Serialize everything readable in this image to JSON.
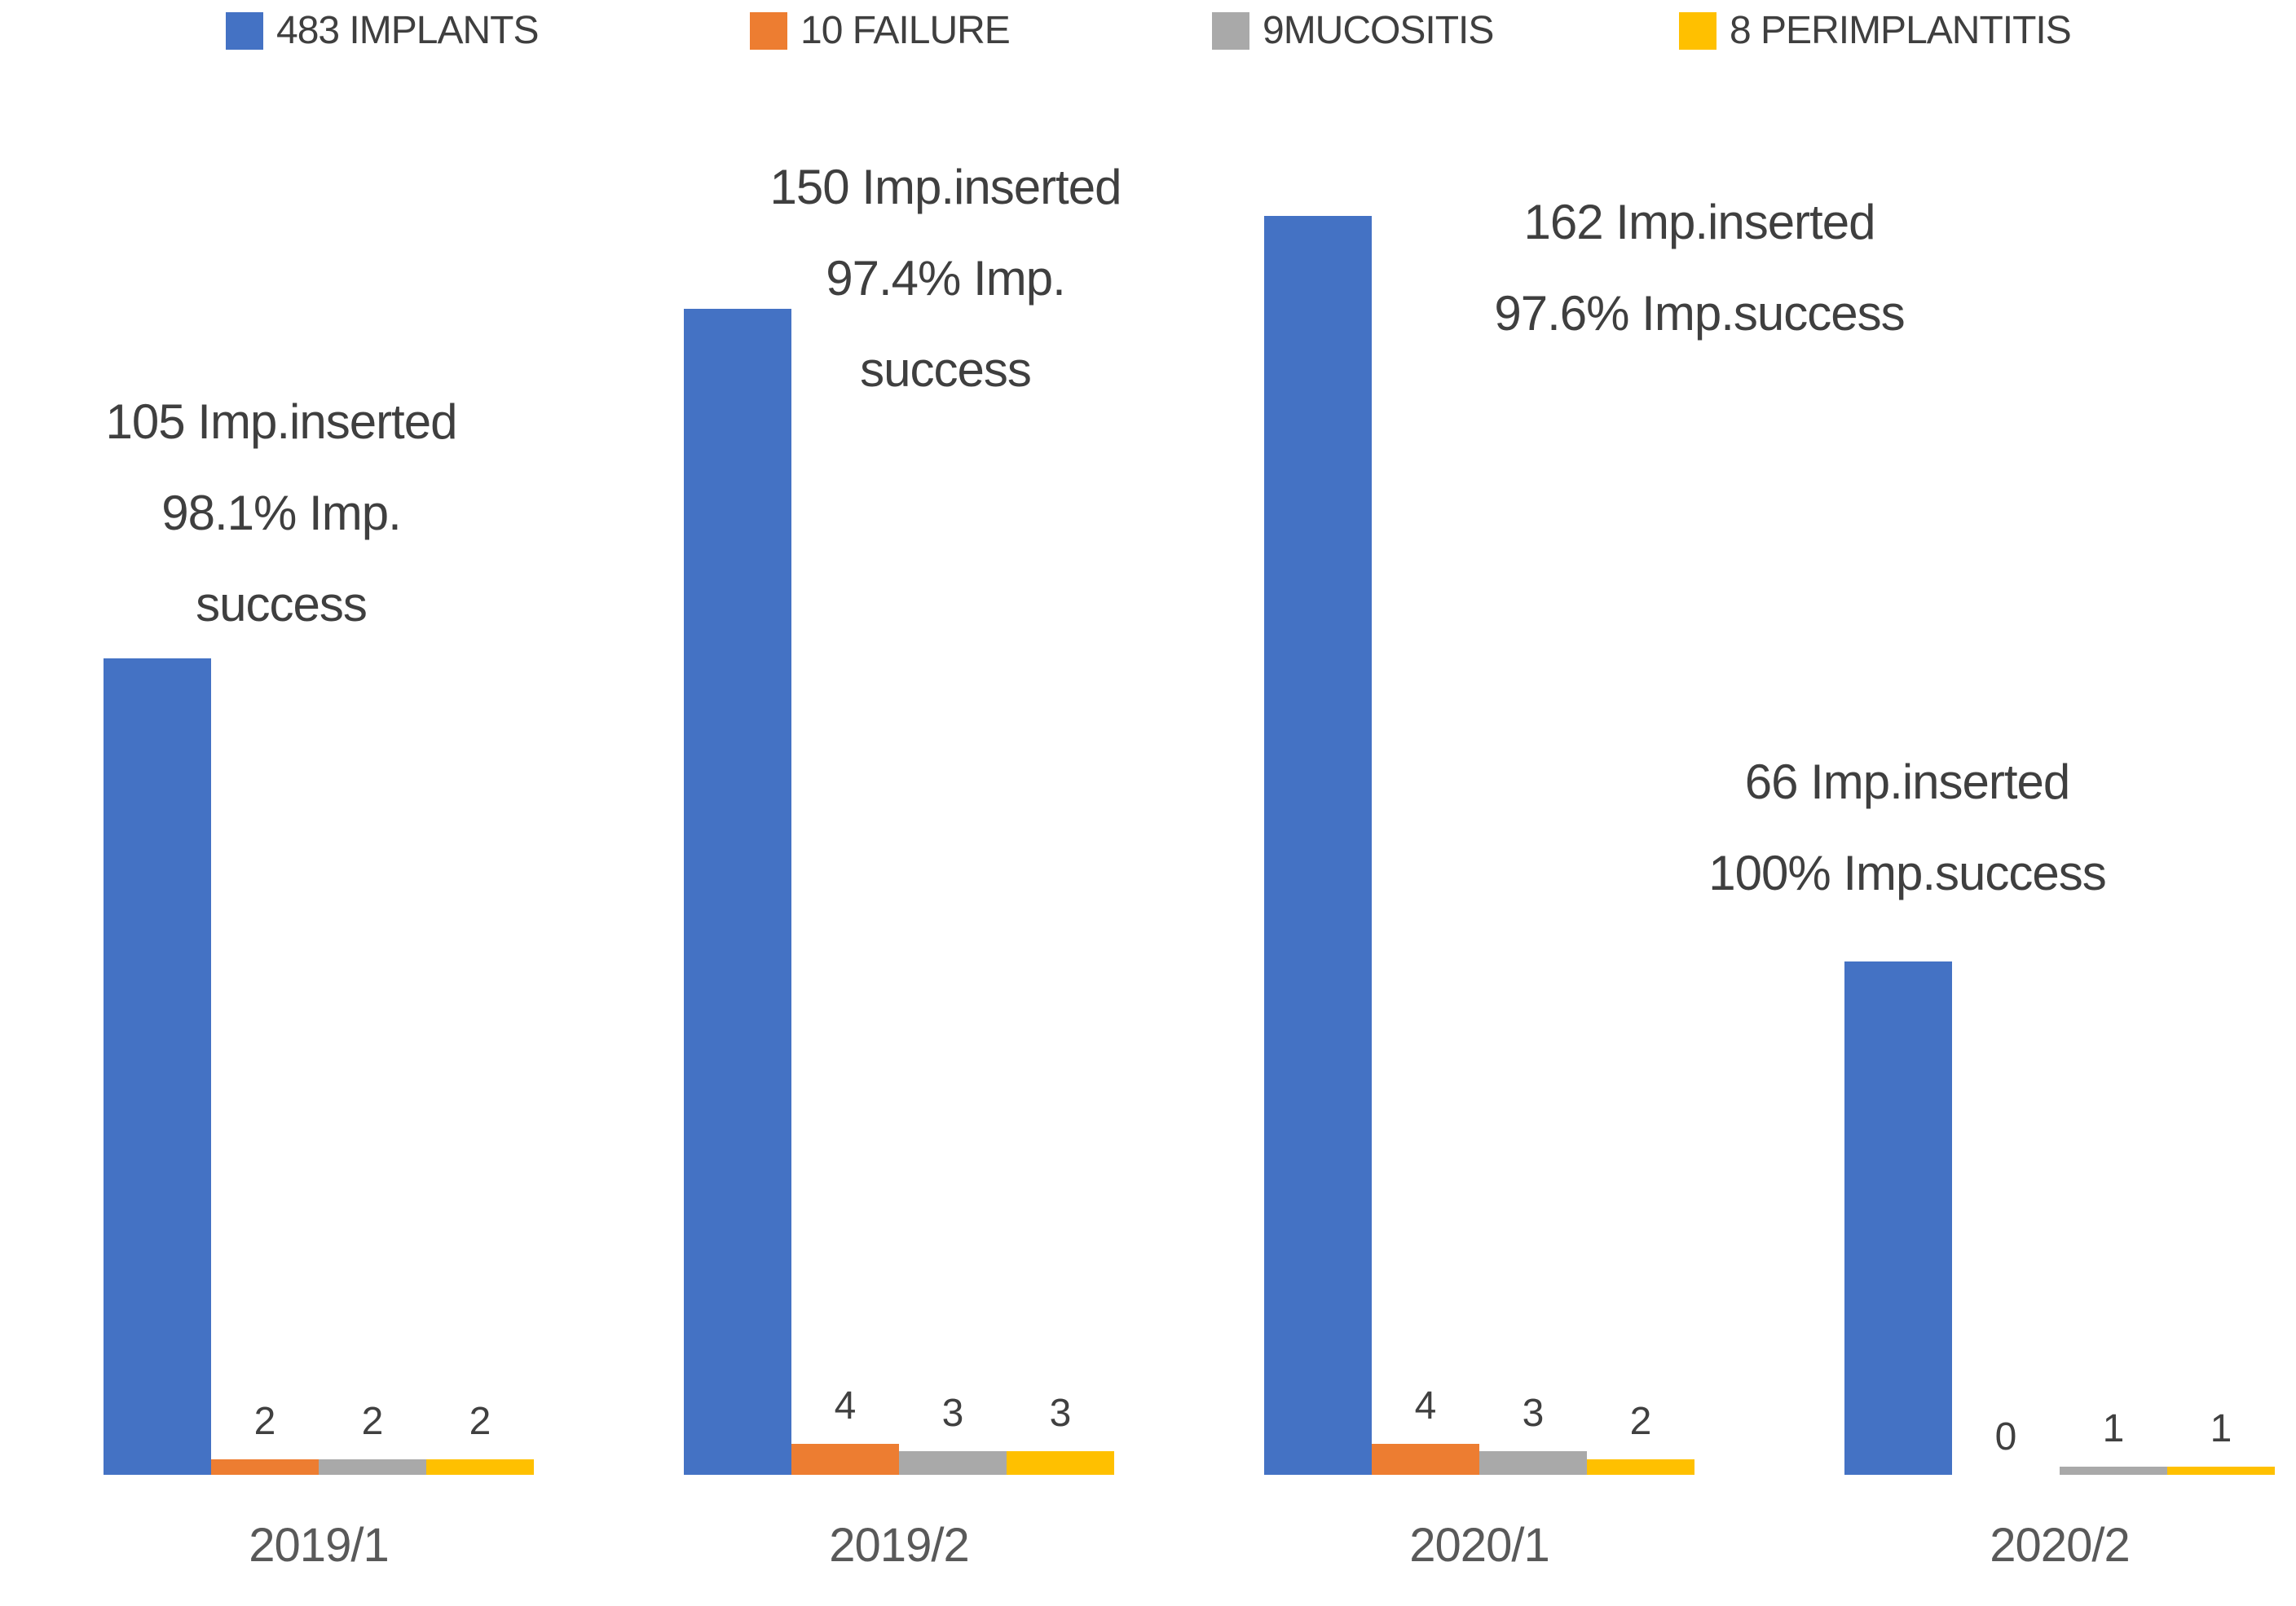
{
  "legend": {
    "items": [
      {
        "label": "483 IMPLANTS",
        "color": "#4472C4"
      },
      {
        "label": "10 FAILURE",
        "color": "#ED7D31"
      },
      {
        "label": "9MUCOSITIS",
        "color": "#A9A9A9"
      },
      {
        "label": "8 PERIMPLANTITIS",
        "color": "#FFC000"
      }
    ]
  },
  "chart_data": {
    "type": "bar",
    "title": "",
    "xlabel": "",
    "ylabel": "",
    "grid": false,
    "legend_position": "top",
    "ylim": [
      0,
      170
    ],
    "categories": [
      "2019/1",
      "2019/2",
      "2020/1",
      "2020/2"
    ],
    "series": [
      {
        "name": "IMPLANTS",
        "color": "#4472C4",
        "values": [
          105,
          150,
          162,
          66
        ],
        "show_data_labels": false
      },
      {
        "name": "FAILURE",
        "color": "#ED7D31",
        "values": [
          2,
          4,
          4,
          0
        ],
        "show_data_labels": true
      },
      {
        "name": "MUCOSITIS",
        "color": "#A9A9A9",
        "values": [
          2,
          3,
          3,
          1
        ],
        "show_data_labels": true
      },
      {
        "name": "PERIMPLANTITIS",
        "color": "#FFC000",
        "values": [
          2,
          3,
          2,
          1
        ],
        "show_data_labels": true
      }
    ],
    "annotations": [
      {
        "category": "2019/1",
        "lines": [
          "105 Imp.inserted",
          "98.1% Imp.",
          "success"
        ]
      },
      {
        "category": "2019/2",
        "lines": [
          "150 Imp.inserted",
          "97.4% Imp.",
          "success"
        ]
      },
      {
        "category": "2020/1",
        "lines": [
          "162 Imp.inserted",
          "97.6% Imp.success"
        ]
      },
      {
        "category": "2020/2",
        "lines": [
          "66 Imp.inserted",
          "100% Imp.success"
        ]
      }
    ]
  },
  "colors": {
    "text": "#3f3f3f",
    "axis_text": "#595959",
    "background": "#ffffff"
  }
}
